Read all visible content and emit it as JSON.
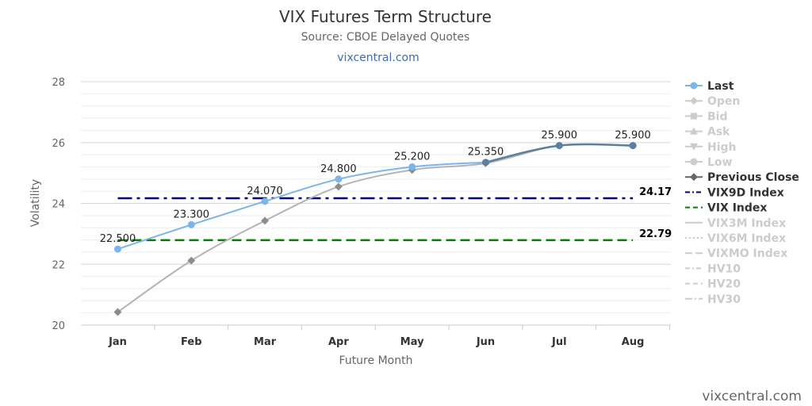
{
  "title": "VIX Futures Term Structure",
  "subtitle": "Source: CBOE Delayed Quotes",
  "site_link": "vixcentral.com",
  "credit": "vixcentral.com",
  "chart_data": {
    "type": "line",
    "categories": [
      "Jan",
      "Feb",
      "Mar",
      "Apr",
      "May",
      "Jun",
      "Jul",
      "Aug"
    ],
    "xlabel": "Future Month",
    "ylabel": "Volatility",
    "ylim": [
      20,
      28
    ],
    "yticks": [
      20,
      22,
      24,
      26,
      28
    ],
    "grid": true,
    "legend_position": "right",
    "series": [
      {
        "name": "Last",
        "values": [
          22.5,
          23.3,
          24.07,
          24.8,
          25.2,
          25.35,
          25.9,
          25.9
        ],
        "labels": [
          "22.500",
          "23.300",
          "24.070",
          "24.800",
          "25.200",
          "25.350",
          "25.900",
          "25.900"
        ],
        "color": "#7cb5ec"
      },
      {
        "name": "Previous Close",
        "values": [
          20.43,
          22.12,
          23.43,
          24.55,
          25.1,
          25.32,
          25.9,
          25.9
        ],
        "color": "#aaaaaa"
      }
    ],
    "reference_lines": [
      {
        "name": "VIX9D Index",
        "value": 24.17,
        "label": "24.17",
        "color": "#000080",
        "style": "dashdot"
      },
      {
        "name": "VIX Index",
        "value": 22.79,
        "label": "22.79",
        "color": "#008000",
        "style": "dash"
      }
    ],
    "legend": [
      {
        "name": "Last",
        "active": true,
        "symbol": "circle",
        "color": "#7cb5ec"
      },
      {
        "name": "Open",
        "active": false,
        "symbol": "diamond",
        "color": "#cccccc"
      },
      {
        "name": "Bid",
        "active": false,
        "symbol": "square",
        "color": "#cccccc"
      },
      {
        "name": "Ask",
        "active": false,
        "symbol": "triangle",
        "color": "#cccccc"
      },
      {
        "name": "High",
        "active": false,
        "symbol": "triangle-down",
        "color": "#cccccc"
      },
      {
        "name": "Low",
        "active": false,
        "symbol": "circle",
        "color": "#cccccc"
      },
      {
        "name": "Previous Close",
        "active": true,
        "symbol": "diamond",
        "color": "#666666"
      },
      {
        "name": "VIX9D Index",
        "active": true,
        "symbol": "dashdot",
        "color": "#000080"
      },
      {
        "name": "VIX Index",
        "active": true,
        "symbol": "dash",
        "color": "#008000"
      },
      {
        "name": "VIX3M Index",
        "active": false,
        "symbol": "solid",
        "color": "#cccccc"
      },
      {
        "name": "VIX6M Index",
        "active": false,
        "symbol": "dot",
        "color": "#cccccc"
      },
      {
        "name": "VIXMO Index",
        "active": false,
        "symbol": "longdash",
        "color": "#cccccc"
      },
      {
        "name": "HV10",
        "active": false,
        "symbol": "dashdot",
        "color": "#cccccc"
      },
      {
        "name": "HV20",
        "active": false,
        "symbol": "dash",
        "color": "#cccccc"
      },
      {
        "name": "HV30",
        "active": false,
        "symbol": "longdashdot",
        "color": "#cccccc"
      }
    ]
  }
}
